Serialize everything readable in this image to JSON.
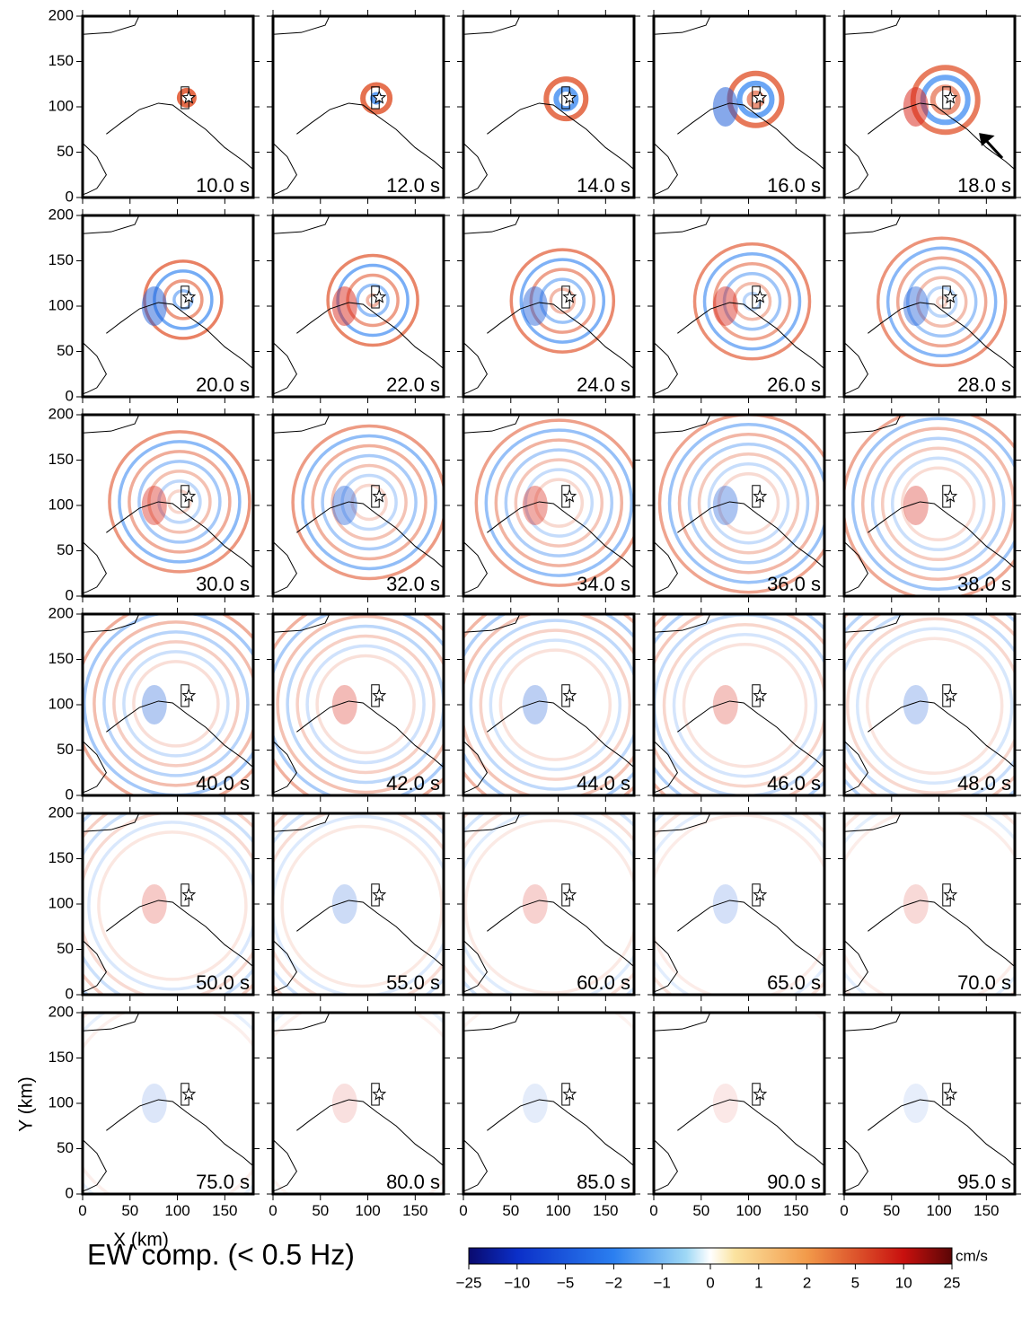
{
  "chart_data": {
    "type": "snapshot-grid",
    "panels": [
      "10.0 s",
      "12.0 s",
      "14.0 s",
      "16.0 s",
      "18.0 s",
      "20.0 s",
      "22.0 s",
      "24.0 s",
      "26.0 s",
      "28.0 s",
      "30.0 s",
      "32.0 s",
      "34.0 s",
      "36.0 s",
      "38.0 s",
      "40.0 s",
      "42.0 s",
      "44.0 s",
      "46.0 s",
      "48.0 s",
      "50.0 s",
      "55.0 s",
      "60.0 s",
      "65.0 s",
      "70.0 s",
      "75.0 s",
      "80.0 s",
      "85.0 s",
      "90.0 s",
      "95.0 s"
    ],
    "xlabel": "X (km)",
    "ylabel": "Y (km)",
    "xlim": [
      0,
      180
    ],
    "ylim": [
      0,
      200
    ],
    "xticks": [
      0,
      50,
      100,
      150
    ],
    "yticks": [
      0,
      50,
      100,
      150,
      200
    ],
    "title": "EW comp. (< 0.5 Hz)",
    "colorbar": {
      "unit": "cm/s",
      "ticks": [
        {
          "value": -25,
          "label": "−25"
        },
        {
          "value": -10,
          "label": "−10"
        },
        {
          "value": -5,
          "label": "−5"
        },
        {
          "value": -2,
          "label": "−2"
        },
        {
          "value": -1,
          "label": "−1"
        },
        0,
        1,
        2,
        5,
        10,
        25
      ]
    }
  }
}
